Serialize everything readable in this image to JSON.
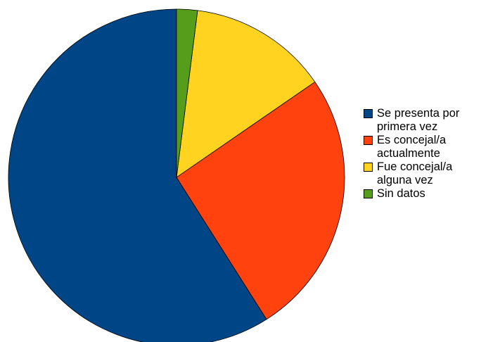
{
  "chart_data": {
    "type": "pie",
    "categories": [
      "Se presenta por primera vez",
      "Es concejal/a actualmente",
      "Fue concejal/a alguna vez",
      "Sin datos"
    ],
    "values": [
      59,
      25.6,
      13.4,
      2
    ],
    "colors": [
      "#004586",
      "#ff420e",
      "#ffd320",
      "#579d1c"
    ],
    "legend": "right"
  }
}
